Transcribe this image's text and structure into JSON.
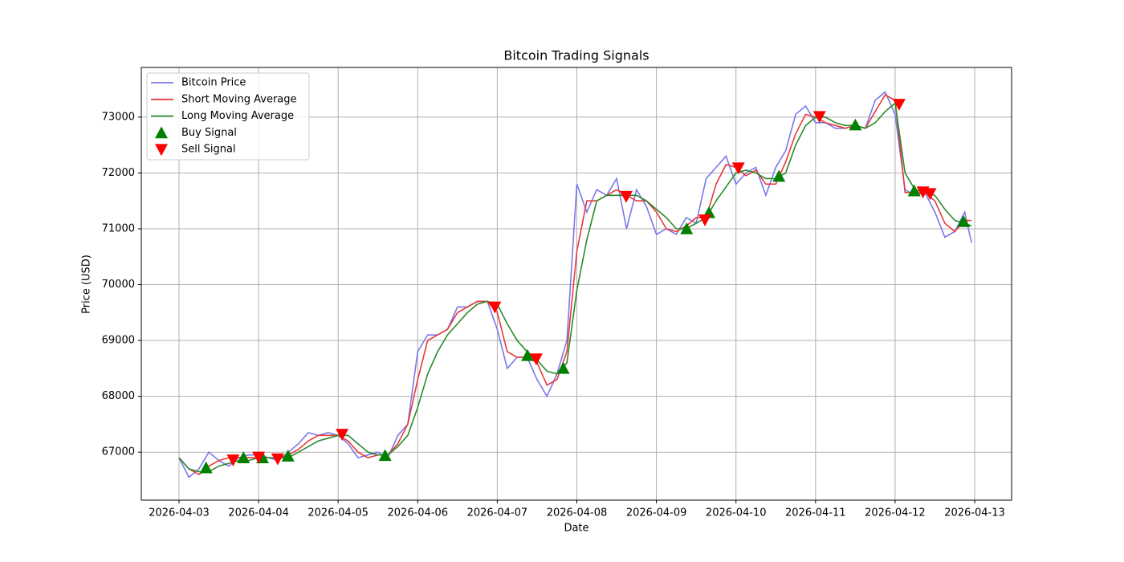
{
  "chart_data": {
    "type": "line",
    "title": "Bitcoin Trading Signals",
    "x_label": "Date",
    "y_label": "Price (USD)",
    "x": [
      0,
      0.125,
      0.25,
      0.375,
      0.5,
      0.625,
      0.75,
      0.875,
      1,
      1.125,
      1.25,
      1.375,
      1.5,
      1.625,
      1.75,
      1.875,
      2,
      2.125,
      2.25,
      2.375,
      2.5,
      2.625,
      2.75,
      2.875,
      3,
      3.125,
      3.25,
      3.375,
      3.5,
      3.625,
      3.75,
      3.875,
      4,
      4.125,
      4.25,
      4.375,
      4.5,
      4.625,
      4.75,
      4.875,
      5,
      5.125,
      5.25,
      5.375,
      5.5,
      5.625,
      5.75,
      5.875,
      6,
      6.125,
      6.25,
      6.375,
      6.5,
      6.625,
      6.75,
      6.875,
      7,
      7.125,
      7.25,
      7.375,
      7.5,
      7.625,
      7.75,
      7.875,
      8,
      8.125,
      8.25,
      8.375,
      8.5,
      8.625,
      8.75,
      8.875,
      9,
      9.125,
      9.25,
      9.375,
      9.5,
      9.625,
      9.75,
      9.875,
      9.96
    ],
    "series": [
      {
        "name": "Bitcoin Price",
        "color": "#7878ec",
        "values": [
          66900,
          66550,
          66700,
          67000,
          66850,
          66750,
          66900,
          66950,
          66950,
          66900,
          66850,
          67000,
          67150,
          67350,
          67300,
          67350,
          67300,
          67150,
          66900,
          66950,
          67000,
          66900,
          67300,
          67500,
          68800,
          69100,
          69100,
          69200,
          69600,
          69600,
          69700,
          69700,
          69200,
          68500,
          68700,
          68700,
          68300,
          68000,
          68400,
          69000,
          71800,
          71300,
          71700,
          71600,
          71900,
          71000,
          71700,
          71400,
          70900,
          71000,
          70900,
          71200,
          71100,
          71900,
          72100,
          72300,
          71800,
          72000,
          72100,
          71600,
          72100,
          72400,
          73050,
          73200,
          72900,
          72900,
          72800,
          72800,
          72850,
          72800,
          73300,
          73450,
          73050,
          71700,
          71600,
          71650,
          71300,
          70850,
          70950,
          71300,
          70750
        ]
      },
      {
        "name": "Short Moving Average",
        "color": "#e8393a",
        "values": [
          66900,
          66700,
          66600,
          66750,
          66850,
          66900,
          66900,
          66900,
          66900,
          66900,
          66900,
          66950,
          67050,
          67200,
          67300,
          67300,
          67300,
          67200,
          67000,
          66900,
          66950,
          66950,
          67150,
          67500,
          68300,
          69000,
          69100,
          69200,
          69500,
          69600,
          69700,
          69700,
          69500,
          68800,
          68700,
          68700,
          68600,
          68200,
          68300,
          68800,
          70600,
          71500,
          71500,
          71600,
          71700,
          71600,
          71500,
          71500,
          71300,
          71000,
          70950,
          71050,
          71200,
          71200,
          71800,
          72150,
          72100,
          71950,
          72050,
          71800,
          71800,
          72200,
          72700,
          73050,
          73000,
          72900,
          72850,
          72800,
          72850,
          72800,
          73100,
          73400,
          73300,
          71650,
          71650,
          71650,
          71500,
          71100,
          70950,
          71150,
          71150
        ]
      },
      {
        "name": "Long Moving Average",
        "color": "#2a8a2a",
        "values": [
          66900,
          66700,
          66650,
          66650,
          66750,
          66800,
          66850,
          66850,
          66900,
          66900,
          66900,
          66900,
          67000,
          67100,
          67200,
          67250,
          67300,
          67300,
          67150,
          67000,
          66950,
          66950,
          67100,
          67300,
          67800,
          68400,
          68800,
          69100,
          69300,
          69500,
          69650,
          69700,
          69650,
          69300,
          69000,
          68800,
          68650,
          68450,
          68400,
          68600,
          69900,
          70800,
          71500,
          71600,
          71600,
          71600,
          71600,
          71500,
          71350,
          71200,
          71000,
          71000,
          71100,
          71200,
          71500,
          71750,
          72000,
          72050,
          72000,
          71900,
          71900,
          72000,
          72500,
          72850,
          73000,
          73000,
          72900,
          72850,
          72850,
          72800,
          72900,
          73100,
          73250,
          72000,
          71700,
          71650,
          71600,
          71350,
          71150,
          71100,
          71050
        ]
      },
      {
        "name": "Buy Signal",
        "color": "#008000",
        "marker": "^",
        "x": [
          0.34,
          0.81,
          1.05,
          1.37,
          2.59,
          4.38,
          4.83,
          6.38,
          6.66,
          7.54,
          8.5,
          9.24,
          9.86
        ],
        "values": [
          66720,
          66900,
          66900,
          66930,
          66940,
          68730,
          68500,
          71000,
          71290,
          71940,
          72860,
          71680,
          71130
        ]
      },
      {
        "name": "Sell Signal",
        "color": "#ff0000",
        "marker": "v",
        "x": [
          0.68,
          1.0,
          1.24,
          2.05,
          3.97,
          4.49,
          5.62,
          6.61,
          7.03,
          8.05,
          9.05,
          9.35,
          9.44
        ],
        "values": [
          66860,
          66910,
          66880,
          67320,
          69600,
          68670,
          71580,
          71160,
          72090,
          73010,
          73230,
          71660,
          71630
        ]
      }
    ],
    "xlim": [
      -0.474,
      10.464
    ],
    "xticks": [
      {
        "value": 0,
        "label": "2026-04-03"
      },
      {
        "value": 1,
        "label": "2026-04-04"
      },
      {
        "value": 2,
        "label": "2026-04-05"
      },
      {
        "value": 3,
        "label": "2026-04-06"
      },
      {
        "value": 4,
        "label": "2026-04-07"
      },
      {
        "value": 5,
        "label": "2026-04-08"
      },
      {
        "value": 6,
        "label": "2026-04-09"
      },
      {
        "value": 7,
        "label": "2026-04-10"
      },
      {
        "value": 8,
        "label": "2026-04-11"
      },
      {
        "value": 9,
        "label": "2026-04-12"
      },
      {
        "value": 10,
        "label": "2026-04-13"
      }
    ],
    "ylim": [
      66140,
      73890
    ],
    "yticks": [
      67000,
      68000,
      69000,
      70000,
      71000,
      72000,
      73000
    ],
    "grid": true,
    "legend": "upper left"
  }
}
